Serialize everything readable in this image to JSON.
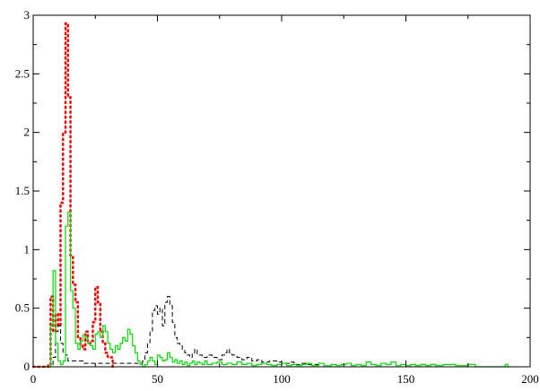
{
  "chart_data": {
    "type": "line",
    "title": "",
    "xlabel": "",
    "ylabel": "",
    "xlim": [
      0,
      200
    ],
    "ylim": [
      0,
      3
    ],
    "grid": false,
    "x_ticks": [
      0,
      50,
      100,
      150,
      200
    ],
    "y_ticks": [
      0,
      0.5,
      1,
      1.5,
      2,
      2.5,
      3
    ],
    "x_tick_labels": [
      "0",
      "50",
      "100",
      "150",
      "200"
    ],
    "y_tick_labels": [
      "0",
      "0.5",
      "1",
      "1.5",
      "2",
      "2.5",
      "3"
    ],
    "series": [
      {
        "style": "dotted",
        "color": "#ff0000",
        "bin_width": 1,
        "x": [
          0,
          6,
          7,
          8,
          9,
          10,
          11,
          12,
          13,
          14,
          15,
          16,
          17,
          18,
          19,
          20,
          21,
          22,
          23,
          24,
          25,
          26,
          27,
          28,
          29,
          30,
          32
        ],
        "y": [
          0,
          0.02,
          0.6,
          0.3,
          0.45,
          0.35,
          1.4,
          2.0,
          2.93,
          2.3,
          0.95,
          0.7,
          0.55,
          0.25,
          0.18,
          0.15,
          0.3,
          0.2,
          0.22,
          0.38,
          0.68,
          0.55,
          0.3,
          0.2,
          0.12,
          0.08,
          0
        ]
      },
      {
        "style": "dashed",
        "color": "#000000",
        "bin_width": 1,
        "x": [
          0,
          8,
          9,
          10,
          11,
          12,
          13,
          14,
          20,
          30,
          40,
          44,
          45,
          46,
          47,
          48,
          49,
          50,
          51,
          52,
          53,
          54,
          55,
          56,
          57,
          58,
          59,
          60,
          61,
          62,
          63,
          64,
          65,
          66,
          68,
          70,
          72,
          74,
          76,
          77,
          78,
          79,
          80,
          82,
          84,
          86,
          88,
          90,
          92,
          95,
          98,
          100,
          103,
          105,
          108,
          110,
          115
        ],
        "y": [
          0,
          0.08,
          0.3,
          0.35,
          0.2,
          0.12,
          0.1,
          0.05,
          0.03,
          0.03,
          0.03,
          0.05,
          0.12,
          0.2,
          0.3,
          0.48,
          0.52,
          0.45,
          0.5,
          0.35,
          0.55,
          0.6,
          0.52,
          0.38,
          0.25,
          0.2,
          0.18,
          0.15,
          0.12,
          0.1,
          0.08,
          0.12,
          0.15,
          0.1,
          0.08,
          0.1,
          0.08,
          0.06,
          0.1,
          0.12,
          0.15,
          0.12,
          0.1,
          0.08,
          0.06,
          0.08,
          0.05,
          0.06,
          0.04,
          0.05,
          0.04,
          0.03,
          0.04,
          0.02,
          0.03,
          0.02,
          0
        ]
      },
      {
        "style": "solid",
        "color": "#00dd00",
        "bin_width": 1,
        "x": [
          0,
          7,
          8,
          9,
          10,
          11,
          12,
          13,
          14,
          15,
          16,
          17,
          18,
          19,
          20,
          21,
          22,
          23,
          24,
          25,
          26,
          27,
          28,
          29,
          30,
          31,
          32,
          33,
          34,
          35,
          36,
          37,
          38,
          39,
          40,
          41,
          42,
          43,
          44,
          45,
          46,
          47,
          48,
          49,
          50,
          51,
          52,
          53,
          54,
          55,
          56,
          57,
          58,
          59,
          60,
          61,
          62,
          63,
          64,
          65,
          66,
          67,
          68,
          69,
          70,
          72,
          74,
          76,
          78,
          80,
          82,
          84,
          86,
          88,
          90,
          92,
          94,
          96,
          98,
          100,
          102,
          104,
          106,
          108,
          110,
          112,
          115,
          117,
          120,
          122,
          124,
          126,
          128,
          130,
          132,
          134,
          136,
          138,
          140,
          142,
          144,
          146,
          148,
          150,
          152,
          154,
          156,
          158,
          160,
          162,
          165,
          170,
          175,
          178,
          190,
          191
        ],
        "y": [
          0,
          0.35,
          0.82,
          0.2,
          0.05,
          0.02,
          0.05,
          1.2,
          1.32,
          0.65,
          0.5,
          0.2,
          0.15,
          0.22,
          0.27,
          0.25,
          0.2,
          0.18,
          0.15,
          0.28,
          0.3,
          0.25,
          0.35,
          0.3,
          0.2,
          0.15,
          0.12,
          0.18,
          0.15,
          0.2,
          0.25,
          0.22,
          0.32,
          0.28,
          0.18,
          0.12,
          0.05,
          0.02,
          0.0,
          0.02,
          0.05,
          0.08,
          0.05,
          0.02,
          0.1,
          0.08,
          0.05,
          0.06,
          0.12,
          0.08,
          0.04,
          0.06,
          0.03,
          0.05,
          0.02,
          0.04,
          0.01,
          0.03,
          0.05,
          0.02,
          0.04,
          0.03,
          0.02,
          0.05,
          0.02,
          0.03,
          0.04,
          0.02,
          0.03,
          0.02,
          0.04,
          0.02,
          0.03,
          0.01,
          0.02,
          0.03,
          0.02,
          0.01,
          0.02,
          0.03,
          0.01,
          0.02,
          0.01,
          0.02,
          0.03,
          0.01,
          0.03,
          0.01,
          0.02,
          0.01,
          0.02,
          0.03,
          0.01,
          0.02,
          0.01,
          0.04,
          0.02,
          0.01,
          0.03,
          0.02,
          0.04,
          0.01,
          0.02,
          0.01,
          0.02,
          0.01,
          0.02,
          0.01,
          0.02,
          0.01,
          0.02,
          0.01,
          0.02,
          0,
          0.02,
          0
        ]
      }
    ]
  }
}
